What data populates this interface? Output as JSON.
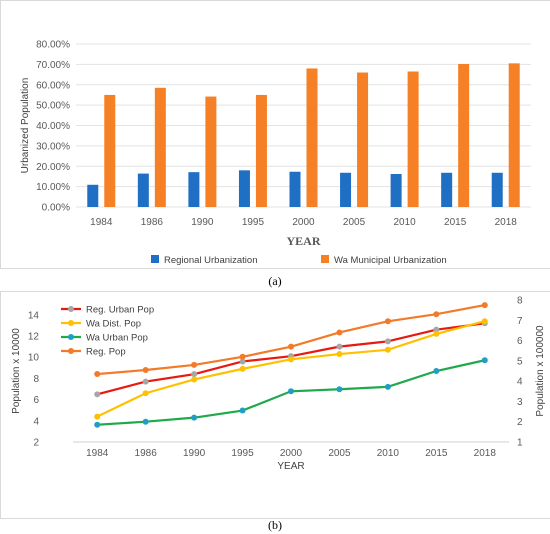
{
  "captions": {
    "a": "(a)",
    "b": "(b)"
  },
  "colors": {
    "regional": "#1f6fc5",
    "wa_municipal": "#f58025",
    "reg_urban_pop": "#e8190f",
    "wa_dist_pop": "#ffc000",
    "wa_urban_pop": "#1fa94a",
    "reg_pop": "#f27a28",
    "grid": "#e3e3e3"
  },
  "chart_data": [
    {
      "type": "bar",
      "xlabel": "YEAR",
      "ylabel": "Urbanized Population",
      "categories": [
        "1984",
        "1986",
        "1990",
        "1995",
        "2000",
        "2005",
        "2010",
        "2015",
        "2018"
      ],
      "yticks": [
        "0.00%",
        "10.00%",
        "20.00%",
        "30.00%",
        "40.00%",
        "50.00%",
        "60.00%",
        "70.00%",
        "80.00%"
      ],
      "ylim": [
        0,
        80
      ],
      "grid": true,
      "legend_position": "bottom",
      "series": [
        {
          "name": "Regional Urbanization",
          "values": [
            10.9,
            16.4,
            17.1,
            18.0,
            17.3,
            16.8,
            16.2,
            16.8,
            16.8
          ]
        },
        {
          "name": "Wa Municipal Urbanization",
          "values": [
            55.0,
            58.5,
            54.2,
            55.0,
            68.0,
            66.0,
            66.5,
            70.2,
            70.5
          ]
        }
      ]
    },
    {
      "type": "line",
      "xlabel": "YEAR",
      "ylabel": "Population x 10000",
      "y2label": "Population x 100000",
      "categories": [
        "1984",
        "1986",
        "1990",
        "1995",
        "2000",
        "2005",
        "2010",
        "2015",
        "2018"
      ],
      "yticks": [
        "2",
        "4",
        "6",
        "8",
        "10",
        "12",
        "14"
      ],
      "y2ticks": [
        "1",
        "2",
        "3",
        "4",
        "5",
        "6",
        "7",
        "8"
      ],
      "ylim": [
        2,
        15.4
      ],
      "y2lim": [
        1,
        8
      ],
      "grid": false,
      "legend_position": "top-left",
      "series": [
        {
          "name": "Reg. Urban Pop",
          "axis": "left",
          "values": [
            6.5,
            7.7,
            8.4,
            9.6,
            10.1,
            11.0,
            11.5,
            12.6,
            13.2
          ]
        },
        {
          "name": "Wa Dist. Pop",
          "axis": "left",
          "values": [
            4.4,
            6.6,
            7.9,
            8.9,
            9.8,
            10.3,
            10.7,
            12.2,
            13.4
          ]
        },
        {
          "name": "Wa Urban Pop",
          "axis": "right",
          "values": [
            1.85,
            2.0,
            2.2,
            2.55,
            3.5,
            3.6,
            3.72,
            4.5,
            5.03
          ]
        },
        {
          "name": "Reg. Pop",
          "axis": "right",
          "values": [
            4.35,
            4.55,
            4.8,
            5.2,
            5.7,
            6.4,
            6.95,
            7.3,
            7.75
          ]
        }
      ]
    }
  ]
}
